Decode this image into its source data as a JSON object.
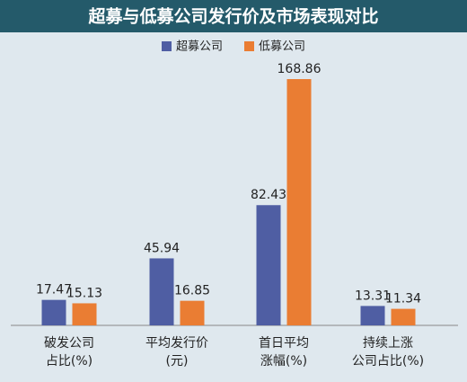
{
  "chart_data": {
    "type": "bar",
    "title": "超募与低募公司发行价及市场表现对比",
    "categories": [
      [
        "破发公司",
        "占比(%)"
      ],
      [
        "平均发行价",
        "(元)"
      ],
      [
        "首日平均",
        "涨幅(%)"
      ],
      [
        "持续上涨",
        "公司占比(%)"
      ]
    ],
    "series": [
      {
        "name": "超募公司",
        "color": "#4f5ea3",
        "values": [
          17.47,
          45.94,
          82.43,
          13.31
        ]
      },
      {
        "name": "低募公司",
        "color": "#ea7d33",
        "values": [
          15.13,
          16.85,
          168.86,
          11.34
        ]
      }
    ]
  }
}
